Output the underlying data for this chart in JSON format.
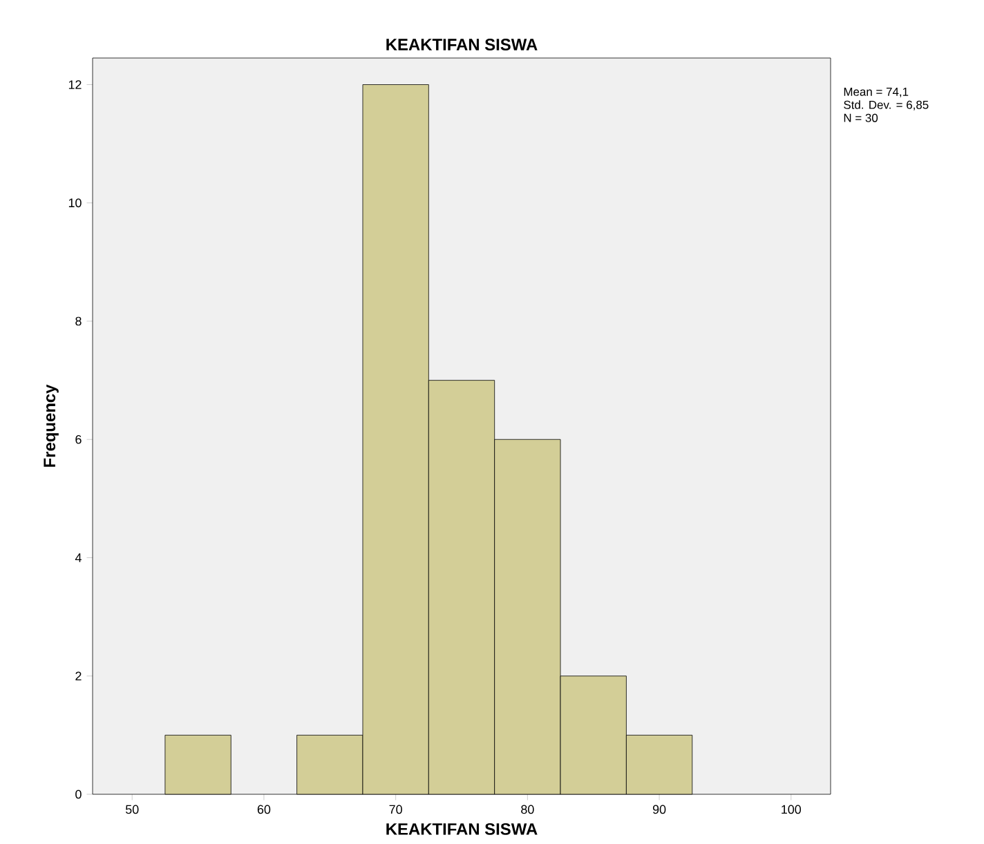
{
  "chart_data": {
    "type": "histogram",
    "title": "KEAKTIFAN SISWA",
    "xlabel": "KEAKTIFAN SISWA",
    "ylabel": "Frequency",
    "bins": [
      52.5,
      57.5,
      62.5,
      67.5,
      72.5,
      77.5,
      82.5,
      87.5,
      92.5
    ],
    "values": [
      1,
      0,
      1,
      12,
      7,
      6,
      2,
      1
    ],
    "color": "#d3ce97",
    "xlim": [
      47,
      103
    ],
    "xticks": [
      50,
      60,
      70,
      80,
      90,
      100
    ],
    "ylim": [
      0,
      12.45
    ],
    "yticks": [
      0,
      2,
      4,
      6,
      8,
      10,
      12
    ],
    "annotations": [
      "Mean = 74,1",
      "Std. Dev. = 6,85",
      "N = 30"
    ]
  }
}
